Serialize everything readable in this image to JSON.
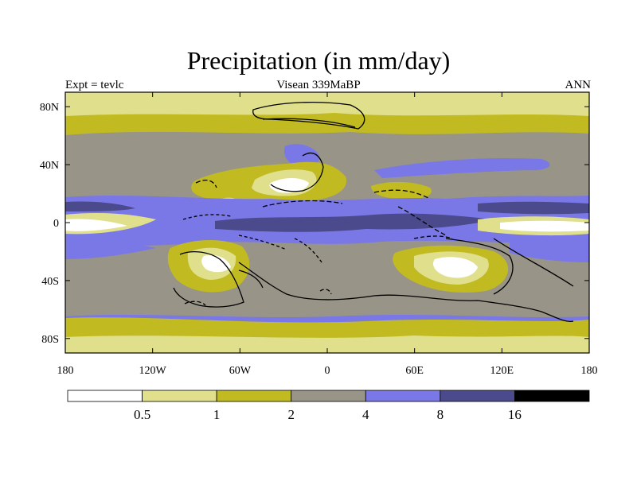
{
  "header": {
    "title": "Precipitation (in mm/day)",
    "left": "Expt = tevlc",
    "center": "Visean 339MaBP",
    "right": "ANN"
  },
  "axes": {
    "lon_ticks": [
      {
        "lon": -180,
        "label": "180"
      },
      {
        "lon": -120,
        "label": "120W"
      },
      {
        "lon": -60,
        "label": "60W"
      },
      {
        "lon": 0,
        "label": "0"
      },
      {
        "lon": 60,
        "label": "60E"
      },
      {
        "lon": 120,
        "label": "120E"
      },
      {
        "lon": 180,
        "label": "180"
      }
    ],
    "lat_ticks": [
      {
        "lat": 80,
        "label": "80N"
      },
      {
        "lat": 40,
        "label": "40N"
      },
      {
        "lat": 0,
        "label": "0"
      },
      {
        "lat": -40,
        "label": "40S"
      },
      {
        "lat": -80,
        "label": "80S"
      }
    ]
  },
  "colorbar": {
    "levels": [
      "0.5",
      "1",
      "2",
      "4",
      "8",
      "16"
    ],
    "colors": [
      "#ffffff",
      "#e0df8c",
      "#c1bb21",
      "#999488",
      "#7a78e6",
      "#4a4a8c",
      "#000000"
    ]
  },
  "legend_colors": {
    "white": "#ffffff",
    "light_yellow": "#e0df8c",
    "olive": "#c1bb21",
    "grey": "#999488",
    "blue": "#7a78e6",
    "dark_blue": "#4a4a8c",
    "black": "#000000"
  }
}
